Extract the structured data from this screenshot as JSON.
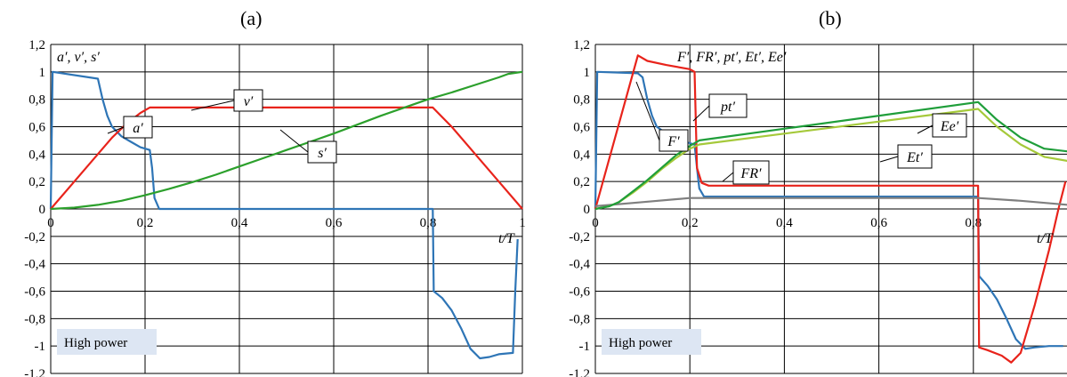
{
  "chart_data": [
    {
      "type": "line",
      "panel_label": "(a)",
      "yaxis_label": "a′, v′, s′",
      "xaxis_label": "t/T",
      "xlim": [
        0,
        1
      ],
      "ylim": [
        -1.2,
        1.2
      ],
      "x_ticks": [
        "0",
        "0,2",
        "0,4",
        "0,6",
        "0,8",
        "1"
      ],
      "x_tick_values": [
        0,
        0.2,
        0.4,
        0.6,
        0.8,
        1.0
      ],
      "y_ticks": [
        "1,2",
        "1",
        "0,8",
        "0,6",
        "0,4",
        "0,2",
        "0",
        "-0,2",
        "-0,4",
        "-0,6",
        "-0,8",
        "-1",
        "-1,2"
      ],
      "y_tick_values": [
        1.2,
        1.0,
        0.8,
        0.6,
        0.4,
        0.2,
        0,
        -0.2,
        -0.4,
        -0.6,
        -0.8,
        -1.0,
        -1.2
      ],
      "grid": true,
      "mode_label": "High power",
      "series": [
        {
          "name": "a′",
          "color": "#2e75b6",
          "points": [
            [
              0,
              0
            ],
            [
              0.004,
              1.0
            ],
            [
              0.1,
              0.95
            ],
            [
              0.11,
              0.8
            ],
            [
              0.12,
              0.68
            ],
            [
              0.13,
              0.6
            ],
            [
              0.15,
              0.53
            ],
            [
              0.17,
              0.49
            ],
            [
              0.19,
              0.45
            ],
            [
              0.21,
              0.43
            ],
            [
              0.215,
              0.3
            ],
            [
              0.22,
              0.08
            ],
            [
              0.23,
              0
            ],
            [
              0.8,
              0
            ],
            [
              0.81,
              0
            ],
            [
              0.812,
              -0.6
            ],
            [
              0.83,
              -0.65
            ],
            [
              0.85,
              -0.74
            ],
            [
              0.87,
              -0.87
            ],
            [
              0.89,
              -1.02
            ],
            [
              0.91,
              -1.09
            ],
            [
              0.93,
              -1.08
            ],
            [
              0.95,
              -1.06
            ],
            [
              0.98,
              -1.05
            ],
            [
              0.985,
              -0.6
            ],
            [
              0.99,
              -0.22
            ]
          ]
        },
        {
          "name": "v′",
          "color": "#e8231b",
          "points": [
            [
              0,
              0
            ],
            [
              0.05,
              0.2
            ],
            [
              0.1,
              0.4
            ],
            [
              0.13,
              0.52
            ],
            [
              0.16,
              0.62
            ],
            [
              0.19,
              0.7
            ],
            [
              0.21,
              0.74
            ],
            [
              0.81,
              0.74
            ],
            [
              0.85,
              0.6
            ],
            [
              0.9,
              0.4
            ],
            [
              0.95,
              0.2
            ],
            [
              1.0,
              0
            ]
          ]
        },
        {
          "name": "s′",
          "color": "#2ca02c",
          "points": [
            [
              0,
              0
            ],
            [
              0.05,
              0.01
            ],
            [
              0.1,
              0.03
            ],
            [
              0.15,
              0.06
            ],
            [
              0.2,
              0.1
            ],
            [
              0.25,
              0.145
            ],
            [
              0.3,
              0.195
            ],
            [
              0.35,
              0.25
            ],
            [
              0.4,
              0.31
            ],
            [
              0.45,
              0.37
            ],
            [
              0.5,
              0.43
            ],
            [
              0.55,
              0.49
            ],
            [
              0.6,
              0.55
            ],
            [
              0.65,
              0.615
            ],
            [
              0.7,
              0.68
            ],
            [
              0.75,
              0.74
            ],
            [
              0.8,
              0.8
            ],
            [
              0.85,
              0.85
            ],
            [
              0.9,
              0.905
            ],
            [
              0.95,
              0.96
            ],
            [
              0.97,
              0.985
            ],
            [
              1.0,
              1.0
            ]
          ]
        }
      ],
      "annotations": [
        {
          "text": "a′",
          "boxed": true
        },
        {
          "text": "v′",
          "boxed": true
        },
        {
          "text": "s′",
          "boxed": true
        }
      ]
    },
    {
      "type": "line",
      "panel_label": "(b)",
      "yaxis_label": "F′, FR′, pt′, Et′, Ee′",
      "xaxis_label": "t/T",
      "xlim": [
        0,
        1
      ],
      "ylim": [
        -1.2,
        1.2
      ],
      "x_ticks": [
        "0",
        "0,2",
        "0,4",
        "0,6",
        "0,8"
      ],
      "x_tick_values": [
        0,
        0.2,
        0.4,
        0.6,
        0.8
      ],
      "y_ticks": [
        "1,2",
        "1",
        "0,8",
        "0,6",
        "0,4",
        "0,2",
        "0",
        "-0,2",
        "-0,4",
        "-0,6",
        "-0,8",
        "-1",
        "-1,2"
      ],
      "y_tick_values": [
        1.2,
        1.0,
        0.8,
        0.6,
        0.4,
        0.2,
        0,
        -0.2,
        -0.4,
        -0.6,
        -0.8,
        -1.0,
        -1.2
      ],
      "grid": true,
      "mode_label": "High power",
      "series": [
        {
          "name": "F′",
          "color": "#2e75b6",
          "points": [
            [
              0,
              0
            ],
            [
              0.004,
              1.0
            ],
            [
              0.09,
              0.99
            ],
            [
              0.1,
              0.96
            ],
            [
              0.11,
              0.8
            ],
            [
              0.12,
              0.68
            ],
            [
              0.13,
              0.6
            ],
            [
              0.15,
              0.55
            ],
            [
              0.17,
              0.52
            ],
            [
              0.19,
              0.49
            ],
            [
              0.21,
              0.47
            ],
            [
              0.215,
              0.3
            ],
            [
              0.22,
              0.15
            ],
            [
              0.23,
              0.09
            ],
            [
              0.8,
              0.09
            ],
            [
              0.81,
              0.09
            ],
            [
              0.812,
              -0.49
            ],
            [
              0.83,
              -0.56
            ],
            [
              0.85,
              -0.66
            ],
            [
              0.87,
              -0.8
            ],
            [
              0.89,
              -0.95
            ],
            [
              0.91,
              -1.02
            ],
            [
              0.93,
              -1.01
            ],
            [
              0.96,
              -1.0
            ],
            [
              0.99,
              -1.0
            ]
          ]
        },
        {
          "name": "pt′",
          "color": "#e8231b",
          "points": [
            [
              0,
              0
            ],
            [
              0.09,
              1.12
            ],
            [
              0.11,
              1.08
            ],
            [
              0.15,
              1.05
            ],
            [
              0.2,
              1.02
            ],
            [
              0.21,
              1.0
            ],
            [
              0.215,
              0.3
            ],
            [
              0.225,
              0.19
            ],
            [
              0.24,
              0.17
            ],
            [
              0.8,
              0.17
            ],
            [
              0.81,
              0.17
            ],
            [
              0.812,
              -1.01
            ],
            [
              0.83,
              -1.03
            ],
            [
              0.86,
              -1.07
            ],
            [
              0.88,
              -1.12
            ],
            [
              0.9,
              -1.05
            ],
            [
              0.93,
              -0.7
            ],
            [
              0.96,
              -0.3
            ],
            [
              0.98,
              0
            ],
            [
              0.995,
              0.2
            ]
          ]
        },
        {
          "name": "FR′",
          "color": "#7f7f7f",
          "points": [
            [
              0,
              0.02
            ],
            [
              0.1,
              0.05
            ],
            [
              0.2,
              0.08
            ],
            [
              0.22,
              0.08
            ],
            [
              0.81,
              0.08
            ],
            [
              0.9,
              0.06
            ],
            [
              1.0,
              0.03
            ]
          ]
        },
        {
          "name": "Et′",
          "color": "#a5c93a",
          "points": [
            [
              0,
              0
            ],
            [
              0.03,
              0.02
            ],
            [
              0.05,
              0.05
            ],
            [
              0.08,
              0.12
            ],
            [
              0.11,
              0.2
            ],
            [
              0.14,
              0.29
            ],
            [
              0.17,
              0.37
            ],
            [
              0.2,
              0.44
            ],
            [
              0.22,
              0.47
            ],
            [
              0.81,
              0.73
            ],
            [
              0.85,
              0.6
            ],
            [
              0.9,
              0.47
            ],
            [
              0.95,
              0.38
            ],
            [
              1.0,
              0.35
            ]
          ]
        },
        {
          "name": "Ee′",
          "color": "#1f9e3a",
          "points": [
            [
              0,
              0
            ],
            [
              0.03,
              0.02
            ],
            [
              0.05,
              0.05
            ],
            [
              0.08,
              0.13
            ],
            [
              0.11,
              0.21
            ],
            [
              0.14,
              0.3
            ],
            [
              0.17,
              0.39
            ],
            [
              0.2,
              0.46
            ],
            [
              0.22,
              0.5
            ],
            [
              0.81,
              0.78
            ],
            [
              0.85,
              0.65
            ],
            [
              0.9,
              0.52
            ],
            [
              0.95,
              0.44
            ],
            [
              1.0,
              0.42
            ]
          ]
        }
      ],
      "annotations": [
        {
          "text": "F′",
          "boxed": true
        },
        {
          "text": "pt′",
          "boxed": true
        },
        {
          "text": "FR′",
          "boxed": true
        },
        {
          "text": "Ee′",
          "boxed": true
        },
        {
          "text": "Et′",
          "boxed": true
        }
      ]
    }
  ]
}
